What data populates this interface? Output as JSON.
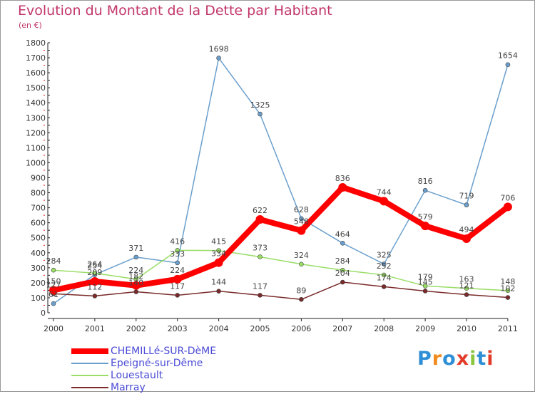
{
  "chart_data": {
    "type": "line",
    "title": "Evolution du Montant de la Dette par Habitant",
    "subtitle": "(en €)",
    "categories": [
      "2000",
      "2001",
      "2002",
      "2003",
      "2004",
      "2005",
      "2006",
      "2007",
      "2008",
      "2009",
      "2010",
      "2011"
    ],
    "ylim": [
      0,
      1800
    ],
    "yticks": [
      0,
      100,
      200,
      300,
      400,
      500,
      600,
      700,
      800,
      900,
      1000,
      1100,
      1200,
      1300,
      1400,
      1500,
      1600,
      1700,
      1800
    ],
    "grid": false,
    "legend_position": "bottom-left",
    "series": [
      {
        "name": "CHEMILLé-SUR-DèME",
        "color": "#ff0000",
        "width": 8,
        "values": [
          150,
          209,
          182,
          224,
          334,
          622,
          548,
          836,
          744,
          579,
          494,
          706
        ],
        "labels": [
          "150",
          "209",
          "182",
          "224",
          "334",
          "622",
          "548",
          "836",
          "744",
          "579",
          "494",
          "706"
        ]
      },
      {
        "name": "Epeigné-sur-Dême",
        "color": "#6a9fcd",
        "width": 1.5,
        "values": [
          61,
          254,
          371,
          333,
          1698,
          1325,
          628,
          464,
          325,
          816,
          719,
          1654
        ],
        "labels": [
          "61",
          "254",
          "371",
          "333",
          "1698",
          "1325",
          "628",
          "464",
          "325",
          "816",
          "719",
          "1654"
        ]
      },
      {
        "name": "Louestault",
        "color": "#99dd66",
        "width": 1.5,
        "values": [
          284,
          264,
          224,
          416,
          415,
          373,
          324,
          284,
          252,
          179,
          163,
          148
        ],
        "labels": [
          "284",
          "264",
          "224",
          "416",
          "415",
          "373",
          "324",
          "284",
          "252",
          "179",
          "163",
          "148"
        ]
      },
      {
        "name": "Marray",
        "color": "#7a2a2a",
        "width": 1.5,
        "values": [
          127,
          112,
          140,
          117,
          144,
          117,
          89,
          204,
          174,
          145,
          121,
          102
        ],
        "labels": [
          "127",
          "112",
          "140",
          "117",
          "144",
          "117",
          "89",
          "204",
          "174",
          "145",
          "121",
          "102"
        ]
      }
    ]
  },
  "logo": {
    "letters": [
      "P",
      "r",
      "o",
      "x",
      "i",
      "t",
      "i"
    ],
    "colors": [
      "#2f8fd6",
      "#f28b1e",
      "#2f8fd6",
      "#e23b2a",
      "#8bc53f",
      "#2f8fd6",
      "#e23b2a"
    ]
  }
}
